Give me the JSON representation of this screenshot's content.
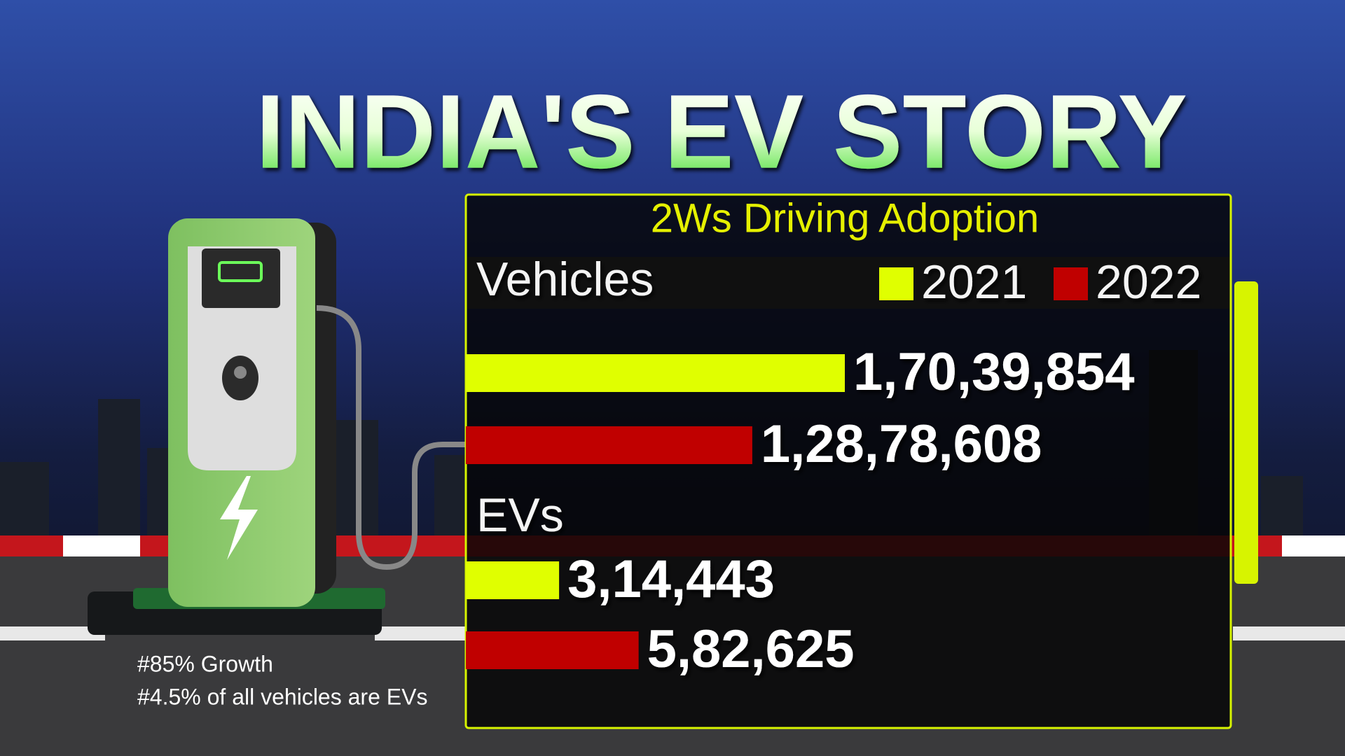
{
  "header": {
    "title": "INDIA'S EV STORY",
    "subtitle": "2Ws Driving Adoption"
  },
  "chart_data": [
    {
      "type": "bar",
      "orientation": "horizontal",
      "title": "Vehicles",
      "xlim": [
        0,
        20000000
      ],
      "series": [
        {
          "name": "2021",
          "color": "#e0ff00",
          "values": [
            17039854
          ],
          "value_labels": [
            "1,70,39,854"
          ]
        },
        {
          "name": "2022",
          "color": "#c00000",
          "values": [
            12878608
          ],
          "value_labels": [
            "1,28,78,608"
          ]
        }
      ]
    },
    {
      "type": "bar",
      "orientation": "horizontal",
      "title": "EVs",
      "xlim": [
        0,
        1500000
      ],
      "series": [
        {
          "color": "#e0ff00",
          "values": [
            314443
          ],
          "value_labels": [
            "3,14,443"
          ]
        },
        {
          "color": "#c00000",
          "values": [
            582625
          ],
          "value_labels": [
            "5,82,625"
          ]
        }
      ]
    }
  ],
  "notes": [
    "#85% Growth",
    "#4.5% of all vehicles are EVs"
  ]
}
